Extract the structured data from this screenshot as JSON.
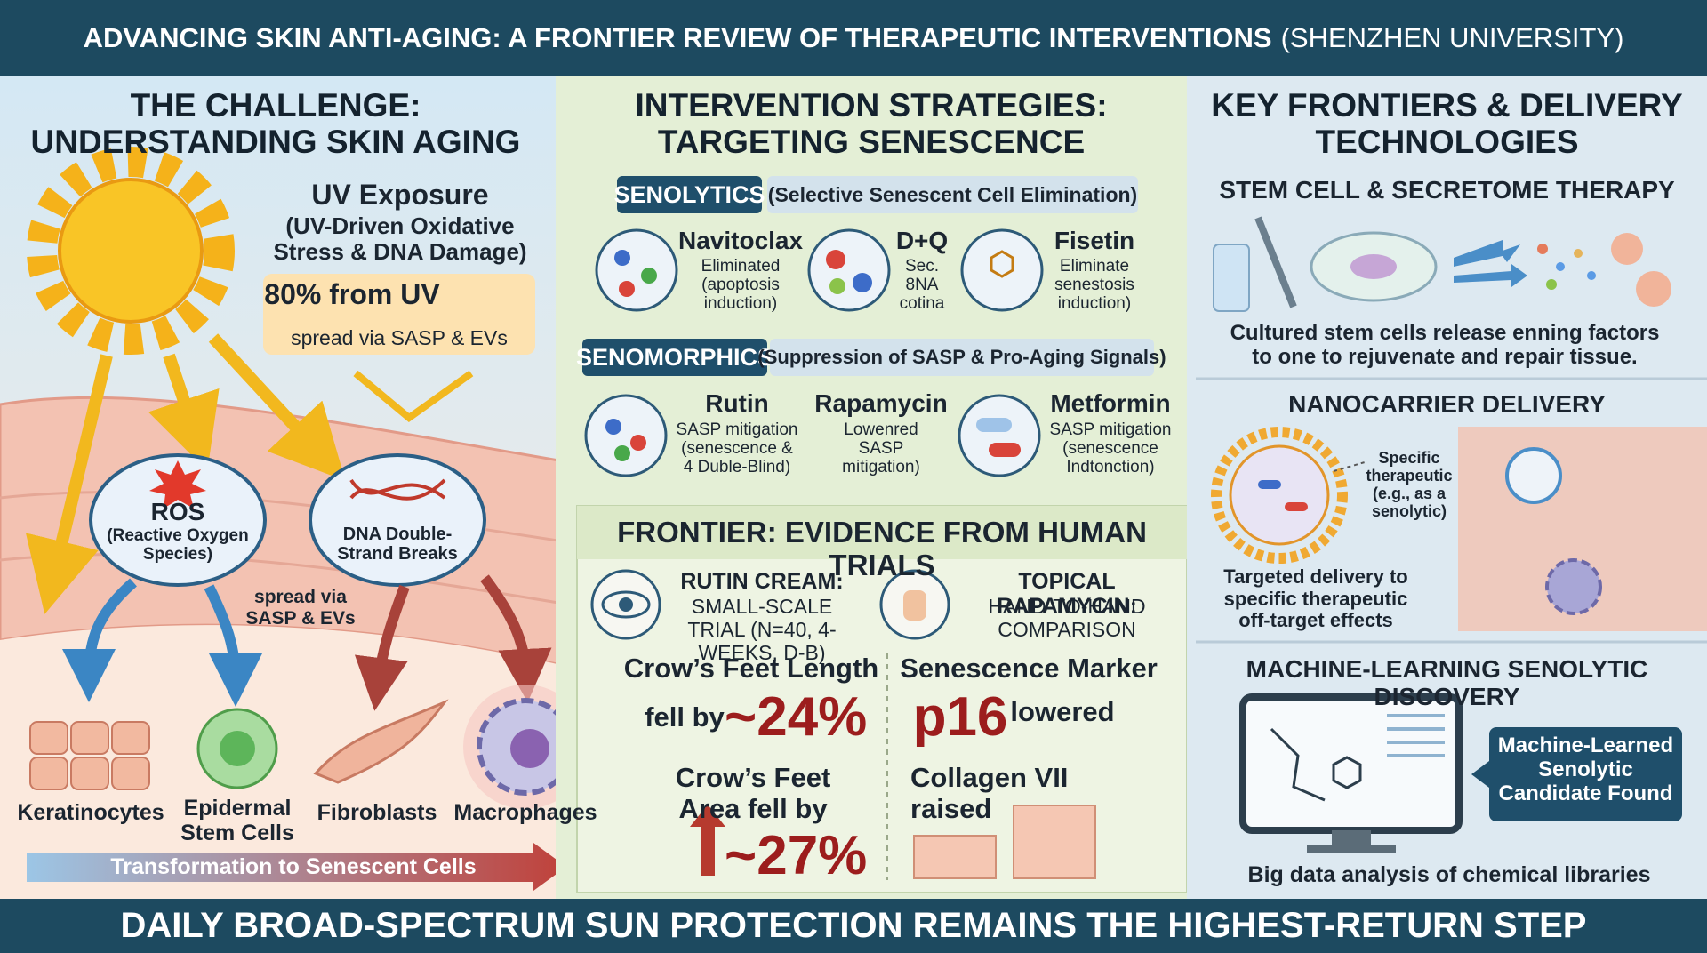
{
  "header": {
    "title": "ADVANCING SKIN ANTI-AGING: A FRONTIER REVIEW OF THERAPEUTIC INTERVENTIONS",
    "affiliation": "(SHENZHEN UNIVERSITY)"
  },
  "left": {
    "title": "THE CHALLENGE: UNDERSTANDING SKIN AGING",
    "uv": {
      "title": "UV Exposure",
      "subtitle": "(UV-Driven Oxidative Stress & DNA Damage)",
      "stat": "80% from UV",
      "note": "spread via SASP & EVs"
    },
    "ros": {
      "title": "ROS",
      "subtitle": "(Reactive Oxygen Species)"
    },
    "dna": {
      "title": "DNA Double-Strand Breaks"
    },
    "spread": "spread via SASP & EVs",
    "cells": [
      "Keratinocytes",
      "Epidermal Stem Cells",
      "Fibroblasts",
      "Macrophages"
    ],
    "arrow_label": "Transformation to Senescent Cells"
  },
  "middle": {
    "title": "INTERVENTION STRATEGIES: TARGETING SENESCENCE",
    "senolytics": {
      "tag": "SENOLYTICS",
      "desc": "(Selective Senescent Cell Elimination)",
      "drugs": [
        {
          "name": "Navitoclax",
          "desc": "Eliminated (apoptosis induction)"
        },
        {
          "name": "D+Q",
          "desc": "Sec. 8NA cotina"
        },
        {
          "name": "Fisetin",
          "desc": "Eliminate senestosis induction)"
        }
      ]
    },
    "senomorphics": {
      "tag": "SENOMORPHICS",
      "desc": "(Suppression of SASP & Pro-Aging Signals)",
      "drugs": [
        {
          "name": "Rutin",
          "desc": "SASP mitigation (senescence & 4 Duble-Blind)"
        },
        {
          "name": "Rapamycin",
          "desc": "Lowenred SASP mitigation)"
        },
        {
          "name": "Metformin",
          "desc": "SASP mitigation (senescence Indtonction)"
        }
      ]
    },
    "frontier": {
      "title": "FRONTIER: EVIDENCE FROM HUMAN TRIALS",
      "trials": [
        {
          "title": "RUTIN CREAM:",
          "desc": "SMALL-SCALE TRIAL (N=40, 4-WEEKS, D-B)"
        },
        {
          "title": "TOPICAL RAPAMYCIN:",
          "desc": "HAND-TO-HAND COMPARISON"
        }
      ],
      "results": [
        {
          "label": "Crow’s Feet Length",
          "verb": "fell by",
          "value": "~24%"
        },
        {
          "label": "Crow’s Feet Area fell by",
          "value": "~27%"
        },
        {
          "label": "Senescence Marker",
          "value": "p16",
          "verb": "lowered"
        },
        {
          "label": "Collagen VII raised"
        }
      ]
    }
  },
  "right": {
    "title": "KEY FRONTIERS & DELIVERY TECHNOLOGIES",
    "stem": {
      "title": "STEM CELL & SECRETOME THERAPY",
      "caption": "Cultured stem cells release enning factors to one to rejuvenate and repair tissue."
    },
    "nano": {
      "title": "NANOCARRIER DELIVERY",
      "callout": "Specific therapeutic (e.g., as a senolytic)",
      "caption": "Targeted delivery to specific therapeutic off-target effects"
    },
    "ml": {
      "title": "MACHINE-LEARNING SENOLYTIC DISCOVERY",
      "callout": "Machine-Learned Senolytic Candidate Found",
      "caption": "Big data analysis of chemical libraries"
    }
  },
  "footer": {
    "text": "DAILY BROAD-SPECTRUM SUN PROTECTION REMAINS THE HIGHEST-RETURN STEP"
  }
}
